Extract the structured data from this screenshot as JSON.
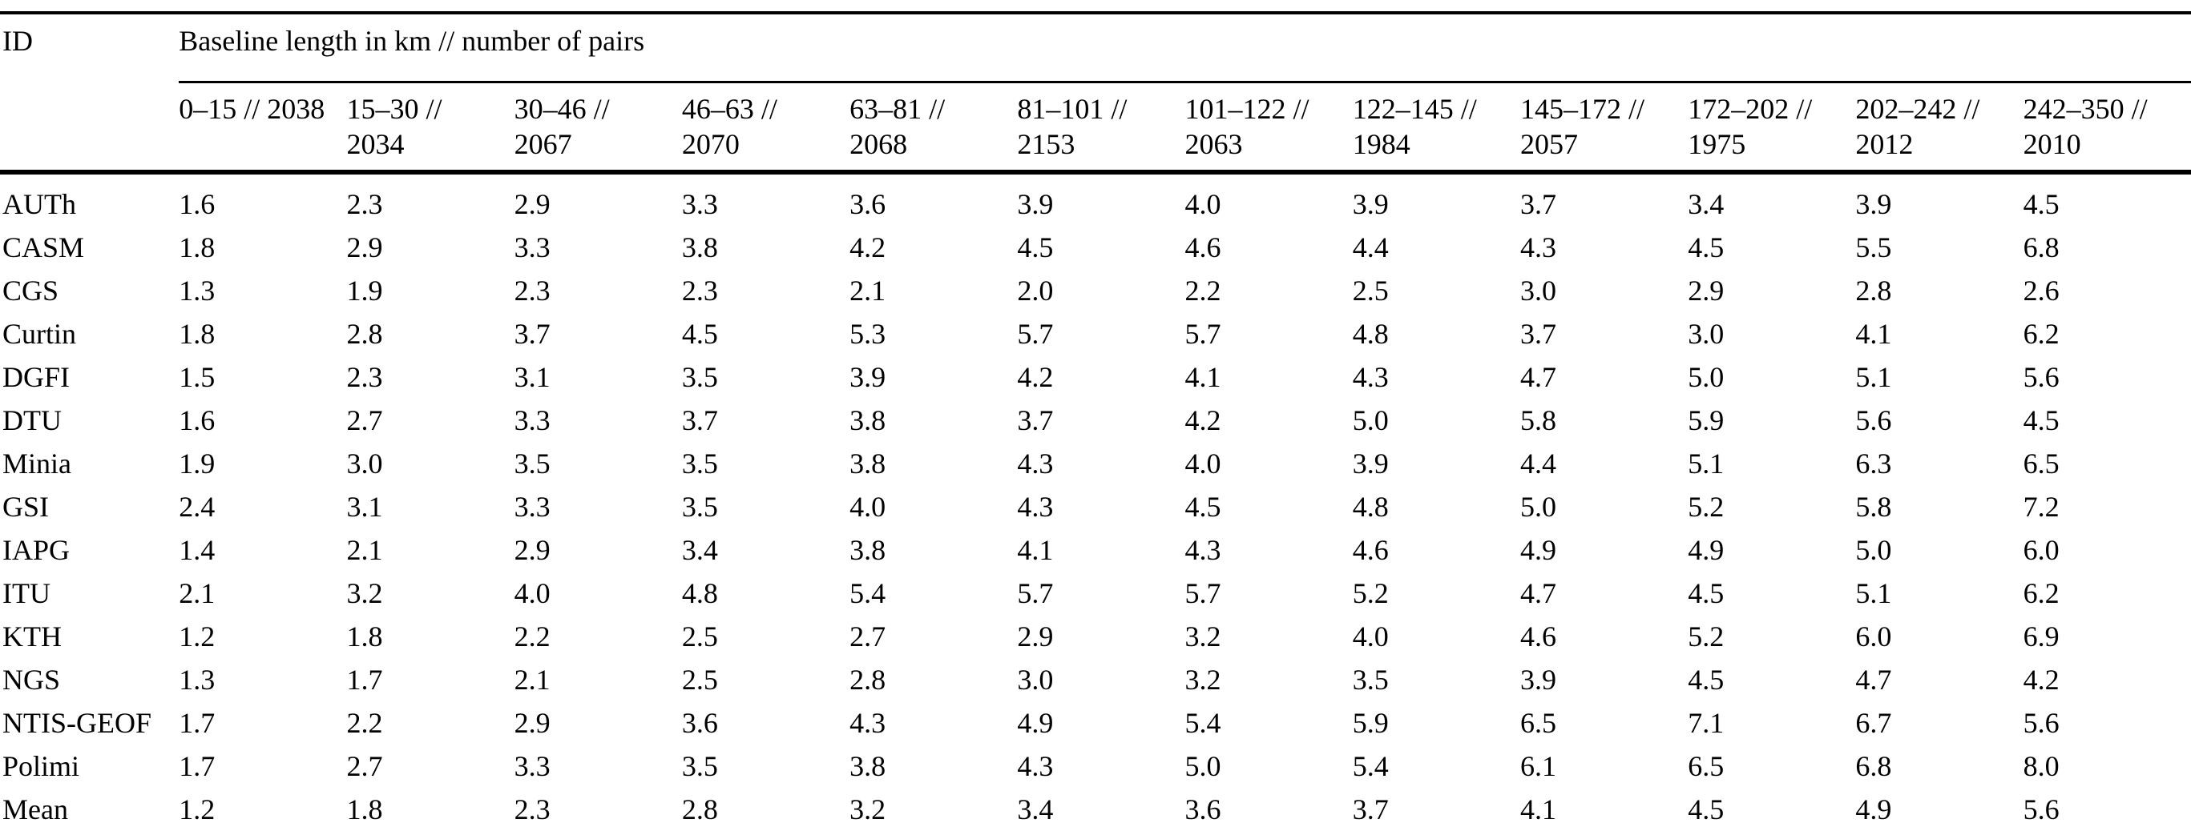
{
  "page": {
    "background_color": "#ffffff",
    "text_color": "#000000",
    "rule_color": "#000000"
  },
  "table": {
    "id_header": "ID",
    "group_header": "Baseline length in km // number of pairs",
    "columns": [
      {
        "line1": "0–15 // 2038",
        "line2": ""
      },
      {
        "line1": "15–30 //",
        "line2": "2034"
      },
      {
        "line1": "30–46 //",
        "line2": "2067"
      },
      {
        "line1": "46–63 //",
        "line2": "2070"
      },
      {
        "line1": "63–81 //",
        "line2": "2068"
      },
      {
        "line1": "81–101 //",
        "line2": "2153"
      },
      {
        "line1": "101–122 //",
        "line2": "2063"
      },
      {
        "line1": "122–145 //",
        "line2": "1984"
      },
      {
        "line1": "145–172 //",
        "line2": "2057"
      },
      {
        "line1": "172–202 //",
        "line2": "1975"
      },
      {
        "line1": "202–242 //",
        "line2": "2012"
      },
      {
        "line1": "242–350 //",
        "line2": "2010"
      }
    ],
    "rows": [
      {
        "id": "AUTh",
        "values": [
          "1.6",
          "2.3",
          "2.9",
          "3.3",
          "3.6",
          "3.9",
          "4.0",
          "3.9",
          "3.7",
          "3.4",
          "3.9",
          "4.5"
        ]
      },
      {
        "id": "CASM",
        "values": [
          "1.8",
          "2.9",
          "3.3",
          "3.8",
          "4.2",
          "4.5",
          "4.6",
          "4.4",
          "4.3",
          "4.5",
          "5.5",
          "6.8"
        ]
      },
      {
        "id": "CGS",
        "values": [
          "1.3",
          "1.9",
          "2.3",
          "2.3",
          "2.1",
          "2.0",
          "2.2",
          "2.5",
          "3.0",
          "2.9",
          "2.8",
          "2.6"
        ]
      },
      {
        "id": "Curtin",
        "values": [
          "1.8",
          "2.8",
          "3.7",
          "4.5",
          "5.3",
          "5.7",
          "5.7",
          "4.8",
          "3.7",
          "3.0",
          "4.1",
          "6.2"
        ]
      },
      {
        "id": "DGFI",
        "values": [
          "1.5",
          "2.3",
          "3.1",
          "3.5",
          "3.9",
          "4.2",
          "4.1",
          "4.3",
          "4.7",
          "5.0",
          "5.1",
          "5.6"
        ]
      },
      {
        "id": "DTU",
        "values": [
          "1.6",
          "2.7",
          "3.3",
          "3.7",
          "3.8",
          "3.7",
          "4.2",
          "5.0",
          "5.8",
          "5.9",
          "5.6",
          "4.5"
        ]
      },
      {
        "id": "Minia",
        "values": [
          "1.9",
          "3.0",
          "3.5",
          "3.5",
          "3.8",
          "4.3",
          "4.0",
          "3.9",
          "4.4",
          "5.1",
          "6.3",
          "6.5"
        ]
      },
      {
        "id": "GSI",
        "values": [
          "2.4",
          "3.1",
          "3.3",
          "3.5",
          "4.0",
          "4.3",
          "4.5",
          "4.8",
          "5.0",
          "5.2",
          "5.8",
          "7.2"
        ]
      },
      {
        "id": "IAPG",
        "values": [
          "1.4",
          "2.1",
          "2.9",
          "3.4",
          "3.8",
          "4.1",
          "4.3",
          "4.6",
          "4.9",
          "4.9",
          "5.0",
          "6.0"
        ]
      },
      {
        "id": "ITU",
        "values": [
          "2.1",
          "3.2",
          "4.0",
          "4.8",
          "5.4",
          "5.7",
          "5.7",
          "5.2",
          "4.7",
          "4.5",
          "5.1",
          "6.2"
        ]
      },
      {
        "id": "KTH",
        "values": [
          "1.2",
          "1.8",
          "2.2",
          "2.5",
          "2.7",
          "2.9",
          "3.2",
          "4.0",
          "4.6",
          "5.2",
          "6.0",
          "6.9"
        ]
      },
      {
        "id": "NGS",
        "values": [
          "1.3",
          "1.7",
          "2.1",
          "2.5",
          "2.8",
          "3.0",
          "3.2",
          "3.5",
          "3.9",
          "4.5",
          "4.7",
          "4.2"
        ]
      },
      {
        "id": "NTIS-GEOF",
        "values": [
          "1.7",
          "2.2",
          "2.9",
          "3.6",
          "4.3",
          "4.9",
          "5.4",
          "5.9",
          "6.5",
          "7.1",
          "6.7",
          "5.6"
        ]
      },
      {
        "id": "Polimi",
        "values": [
          "1.7",
          "2.7",
          "3.3",
          "3.5",
          "3.8",
          "4.3",
          "5.0",
          "5.4",
          "6.1",
          "6.5",
          "6.8",
          "8.0"
        ]
      },
      {
        "id": "Mean",
        "values": [
          "1.2",
          "1.8",
          "2.3",
          "2.8",
          "3.2",
          "3.4",
          "3.6",
          "3.7",
          "4.1",
          "4.5",
          "4.9",
          "5.6"
        ]
      }
    ]
  }
}
